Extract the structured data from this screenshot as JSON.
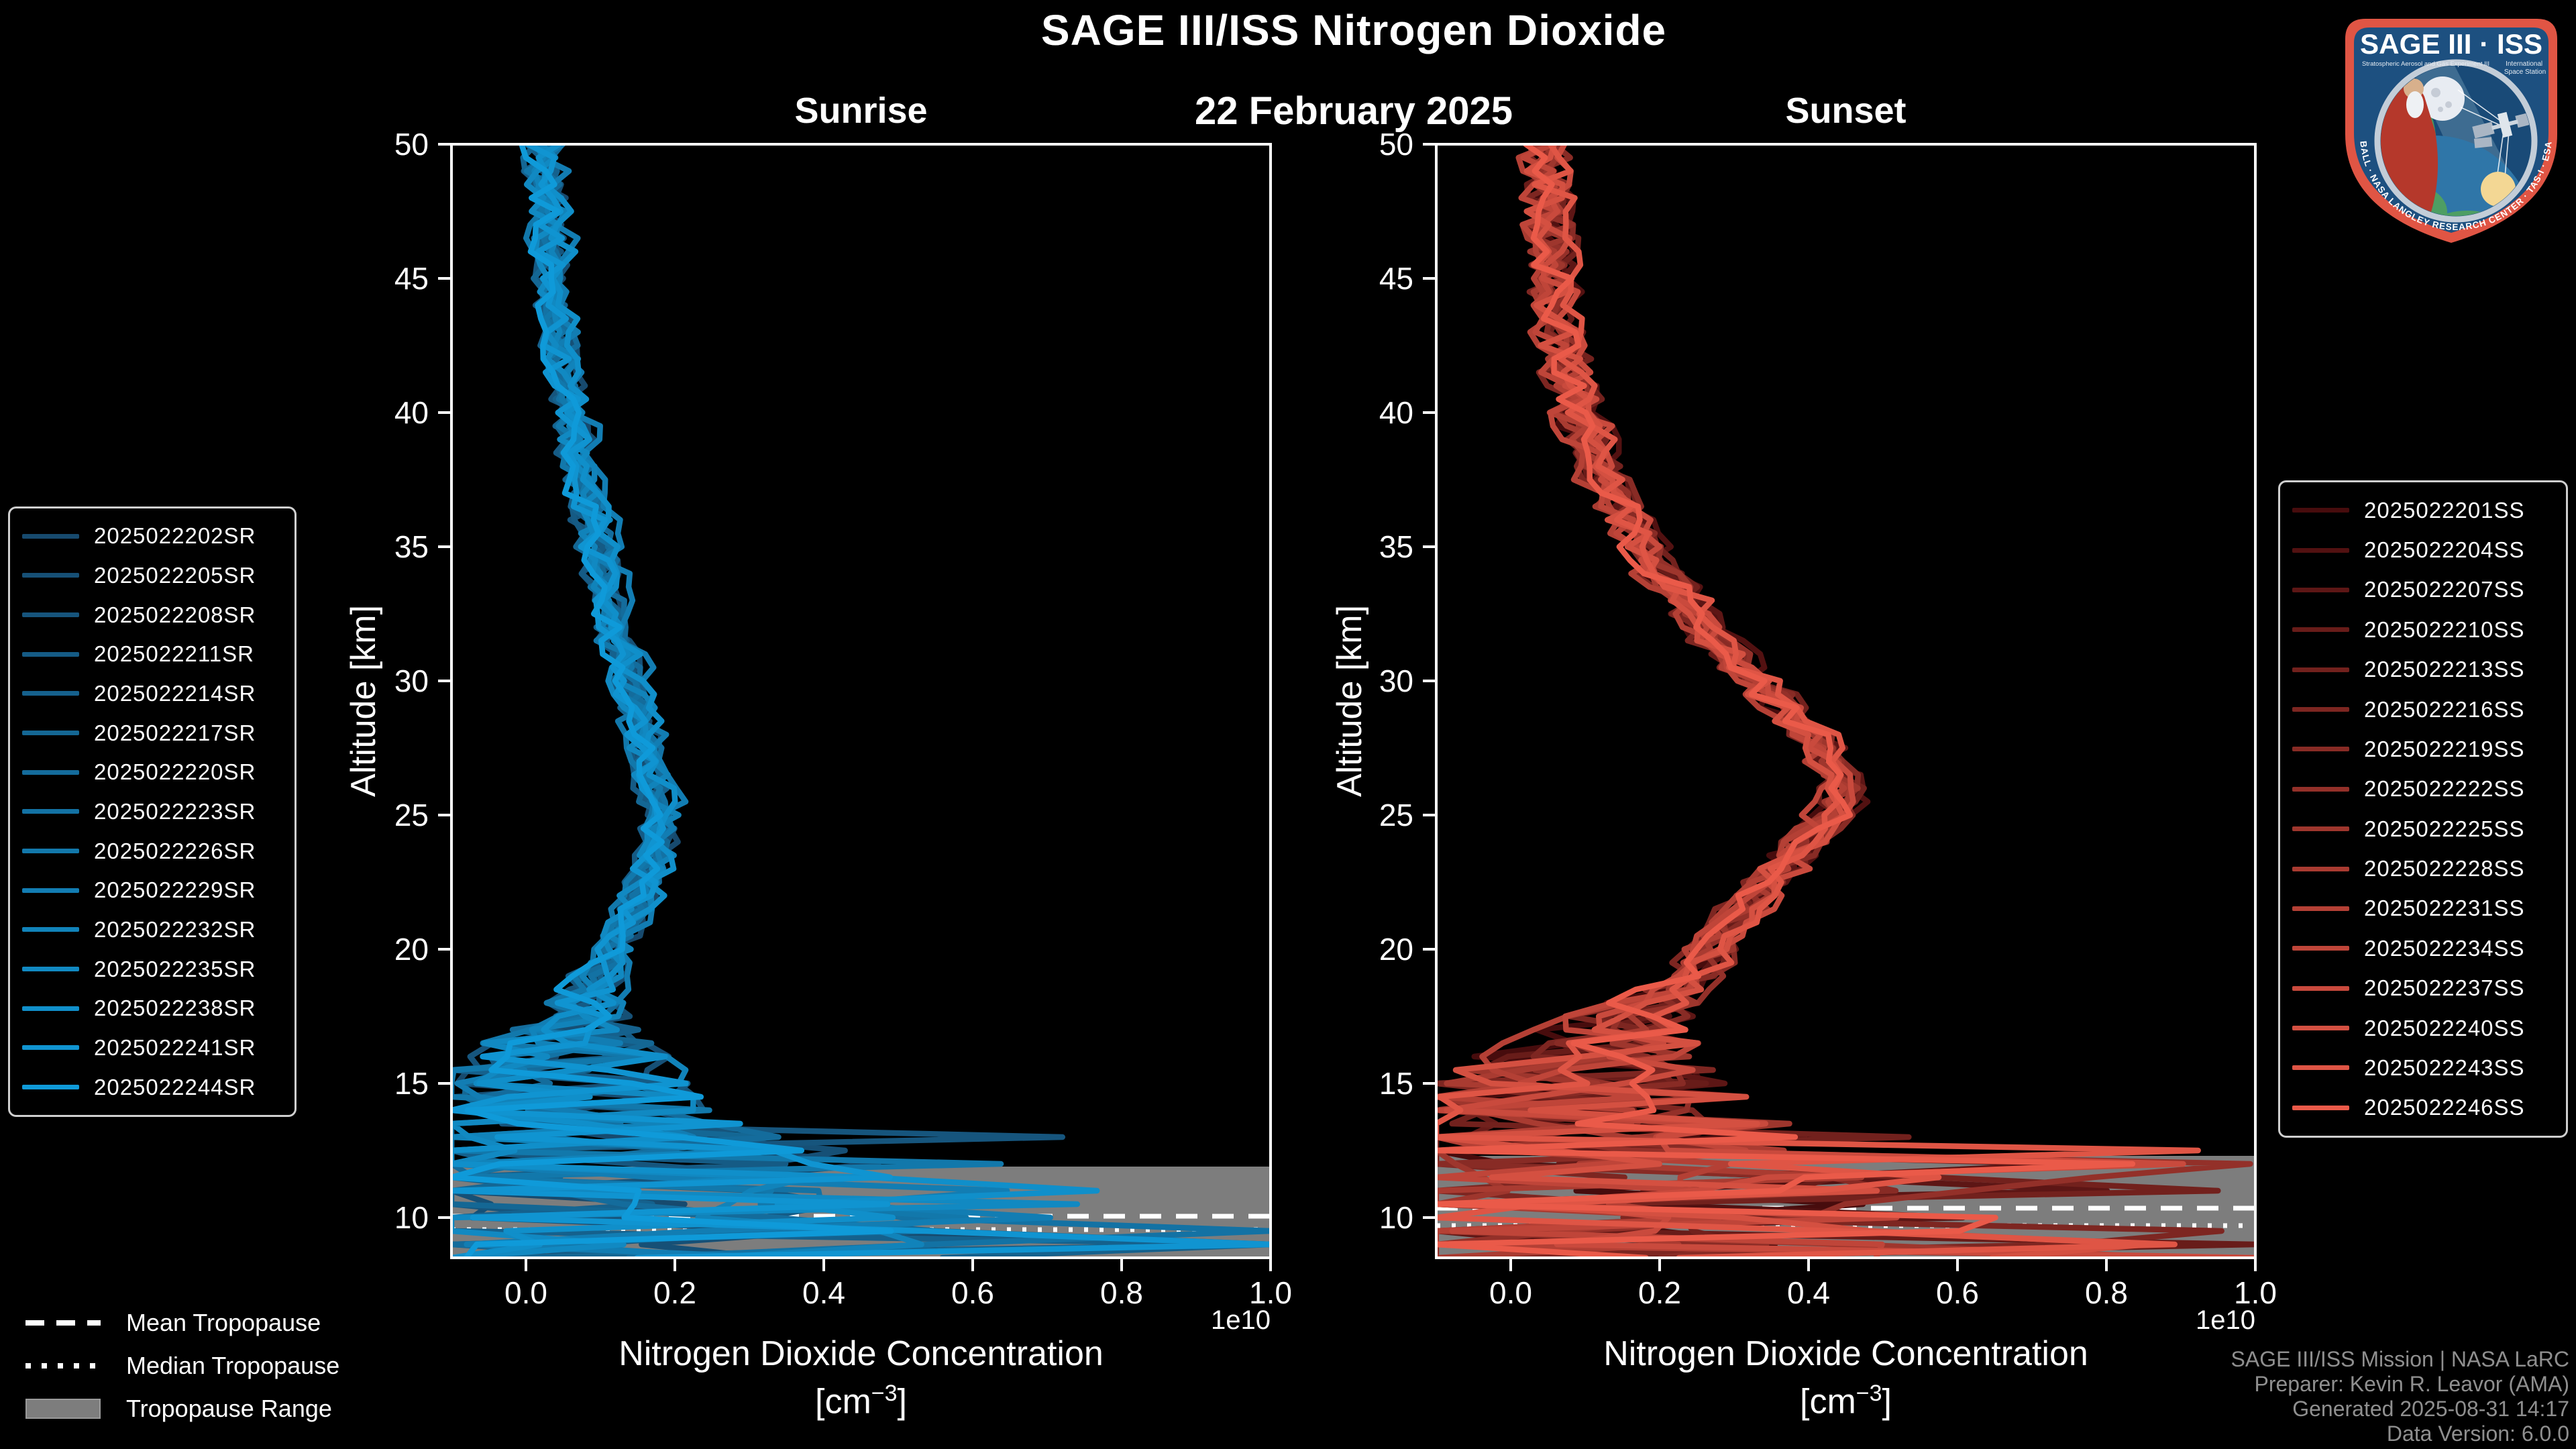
{
  "header": {
    "title": "SAGE III/ISS Nitrogen Dioxide",
    "date": "22 February 2025"
  },
  "footer": {
    "lines": [
      "SAGE III/ISS Mission | NASA LaRC",
      "Preparer: Kevin R. Leavor (AMA)",
      "Generated 2025-08-31 14:17",
      "Data Version: 6.0.0"
    ]
  },
  "logo": {
    "title": "SAGE III · ISS",
    "subtitle_left": "Stratospheric Aerosol and Gas Experiment III",
    "subtitle_right_line1": "International",
    "subtitle_right_line2": "Space Station",
    "arc_text": "BALL · NASA LANGLEY RESEARCH CENTER · TAS-I · ESA"
  },
  "tropopause_legend": {
    "items": [
      {
        "label": "Mean Tropopause",
        "style": "dashed"
      },
      {
        "label": "Median Tropopause",
        "style": "dotted"
      },
      {
        "label": "Tropopause Range",
        "style": "band"
      }
    ]
  },
  "colors": {
    "background": "#000000",
    "foreground": "#ffffff",
    "tropopause_band": "#7d7d7d",
    "footer_text": "#8f8f8f",
    "legend_border": "#cfcfcf"
  },
  "chart_data": [
    {
      "type": "line",
      "panel": "sunrise",
      "title": "Sunrise",
      "xlabel": "Nitrogen Dioxide Concentration",
      "unit_prefix": "[cm",
      "unit_sup": "−3",
      "unit_suffix": "]",
      "ylabel": "Altitude [km]",
      "offset_label": "1e10",
      "xlim": [
        -0.1,
        1.0
      ],
      "ylim": [
        8.5,
        50
      ],
      "xticks": [
        0.0,
        0.2,
        0.4,
        0.6,
        0.8,
        1.0
      ],
      "xtick_labels": [
        "0.0",
        "0.2",
        "0.4",
        "0.6",
        "0.8",
        "1.0"
      ],
      "yticks": [
        50,
        45,
        40,
        35,
        30,
        25,
        20,
        15,
        10
      ],
      "series_ids": [
        "2025022202SR",
        "2025022205SR",
        "2025022208SR",
        "2025022211SR",
        "2025022214SR",
        "2025022217SR",
        "2025022220SR",
        "2025022223SR",
        "2025022226SR",
        "2025022229SR",
        "2025022232SR",
        "2025022235SR",
        "2025022238SR",
        "2025022241SR",
        "2025022244SR"
      ],
      "color_ramp": [
        "#174a6e",
        "#0f9ad9"
      ],
      "mean_profile": [
        [
          50,
          0.025
        ],
        [
          46,
          0.035
        ],
        [
          42,
          0.05
        ],
        [
          38,
          0.075
        ],
        [
          34,
          0.105
        ],
        [
          31,
          0.13
        ],
        [
          28,
          0.16
        ],
        [
          26,
          0.175
        ],
        [
          24.5,
          0.185
        ],
        [
          23,
          0.17
        ],
        [
          21,
          0.14
        ],
        [
          19.5,
          0.11
        ],
        [
          18,
          0.08
        ],
        [
          16,
          0.06
        ],
        [
          14,
          0.05
        ],
        [
          12,
          0.06
        ],
        [
          10,
          0.07
        ],
        [
          8.5,
          0.07
        ]
      ],
      "noise_amp": [
        [
          50,
          0.022
        ],
        [
          20,
          0.022
        ],
        [
          18,
          0.05
        ],
        [
          15,
          0.18
        ],
        [
          13,
          0.3
        ],
        [
          11,
          0.42
        ],
        [
          8.5,
          0.5
        ]
      ],
      "spikes": [
        {
          "below_km": 13.5,
          "probability": 0.22,
          "max_amplitude": 0.85
        },
        {
          "below_km": 12.0,
          "probability": 0.18,
          "max_amplitude": 0.6
        }
      ],
      "altitude_step_km": 0.5,
      "tropopause": {
        "mean_km": 10.05,
        "median_km": 9.55,
        "range_km": [
          8.5,
          11.9
        ]
      },
      "seed": 11
    },
    {
      "type": "line",
      "panel": "sunset",
      "title": "Sunset",
      "xlabel": "Nitrogen Dioxide Concentration",
      "unit_prefix": "[cm",
      "unit_sup": "−3",
      "unit_suffix": "]",
      "ylabel": "Altitude [km]",
      "offset_label": "1e10",
      "xlim": [
        -0.1,
        1.0
      ],
      "ylim": [
        8.5,
        50
      ],
      "xticks": [
        0.0,
        0.2,
        0.4,
        0.6,
        0.8,
        1.0
      ],
      "xtick_labels": [
        "0.0",
        "0.2",
        "0.4",
        "0.6",
        "0.8",
        "1.0"
      ],
      "yticks": [
        50,
        45,
        40,
        35,
        30,
        25,
        20,
        15,
        10
      ],
      "series_ids": [
        "2025022201SS",
        "2025022204SS",
        "2025022207SS",
        "2025022210SS",
        "2025022213SS",
        "2025022216SS",
        "2025022219SS",
        "2025022222SS",
        "2025022225SS",
        "2025022228SS",
        "2025022231SS",
        "2025022234SS",
        "2025022237SS",
        "2025022240SS",
        "2025022243SS",
        "2025022246SS"
      ],
      "color_ramp": [
        "#470c0d",
        "#ea5a49"
      ],
      "mean_profile": [
        [
          50,
          0.045
        ],
        [
          47,
          0.05
        ],
        [
          44,
          0.06
        ],
        [
          41,
          0.08
        ],
        [
          38,
          0.115
        ],
        [
          35,
          0.175
        ],
        [
          32,
          0.26
        ],
        [
          30,
          0.33
        ],
        [
          28,
          0.4
        ],
        [
          26.5,
          0.44
        ],
        [
          25.5,
          0.445
        ],
        [
          24,
          0.4
        ],
        [
          22.5,
          0.345
        ],
        [
          21,
          0.3
        ],
        [
          19.5,
          0.26
        ],
        [
          18,
          0.19
        ],
        [
          16,
          0.12
        ],
        [
          14,
          0.09
        ],
        [
          12,
          0.09
        ],
        [
          10,
          0.09
        ],
        [
          8.5,
          0.08
        ]
      ],
      "noise_amp": [
        [
          50,
          0.028
        ],
        [
          20,
          0.028
        ],
        [
          18,
          0.06
        ],
        [
          15,
          0.22
        ],
        [
          13,
          0.34
        ],
        [
          11,
          0.46
        ],
        [
          8.5,
          0.52
        ]
      ],
      "spikes": [
        {
          "below_km": 13.8,
          "probability": 0.24,
          "max_amplitude": 0.9
        },
        {
          "below_km": 12.0,
          "probability": 0.18,
          "max_amplitude": 0.6
        }
      ],
      "altitude_step_km": 0.5,
      "tropopause": {
        "mean_km": 10.35,
        "median_km": 9.7,
        "range_km": [
          8.5,
          12.3
        ]
      },
      "seed": 47
    }
  ]
}
